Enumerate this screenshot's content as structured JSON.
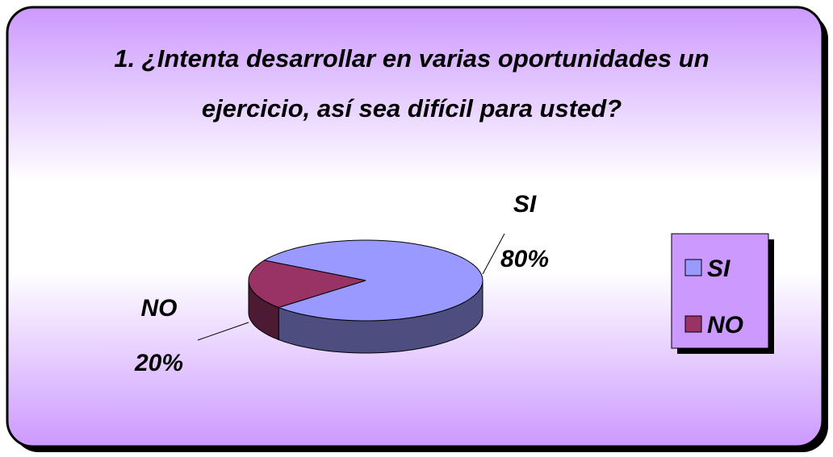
{
  "chart_data": {
    "type": "pie",
    "title": "1. ¿Intenta desarrollar en varias oportunidades un ejercicio, así sea difícil para usted?",
    "categories": [
      "SI",
      "NO"
    ],
    "values": [
      80,
      20
    ],
    "value_labels": [
      "80%",
      "20%"
    ],
    "colors": [
      "#9999ff",
      "#993366"
    ],
    "legend": "right"
  }
}
